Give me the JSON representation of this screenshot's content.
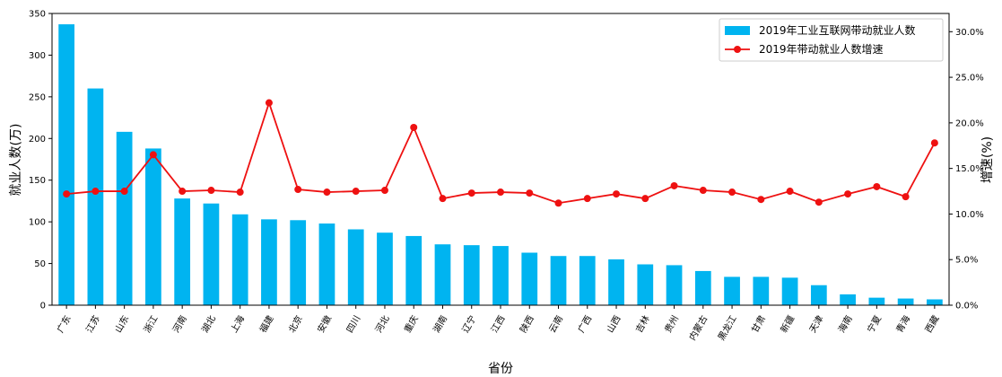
{
  "chart_data": {
    "type": "bar",
    "title": "",
    "xlabel": "省份",
    "ylabel": "就业人数(万)",
    "y2label": "增速(%)",
    "ylim": [
      0,
      350
    ],
    "y2lim": [
      0,
      32
    ],
    "yticks": [
      0,
      50,
      100,
      150,
      200,
      250,
      300,
      350
    ],
    "y2ticks": [
      "0.0%",
      "5.0%",
      "10.0%",
      "15.0%",
      "20.0%",
      "25.0%",
      "30.0%"
    ],
    "y2tick_values": [
      0,
      5,
      10,
      15,
      20,
      25,
      30
    ],
    "legend_position": "top-right",
    "categories": [
      "广东",
      "江苏",
      "山东",
      "浙江",
      "河南",
      "湖北",
      "上海",
      "福建",
      "北京",
      "安徽",
      "四川",
      "河北",
      "重庆",
      "湖南",
      "辽宁",
      "江西",
      "陕西",
      "云南",
      "广西",
      "山西",
      "吉林",
      "贵州",
      "内蒙古",
      "黑龙江",
      "甘肃",
      "新疆",
      "天津",
      "海南",
      "宁夏",
      "青海",
      "西藏"
    ],
    "series": [
      {
        "name": "2019年工业互联网带动就业人数",
        "type": "bar",
        "axis": "left",
        "color": "#00B4F0",
        "values": [
          337,
          260,
          208,
          188,
          128,
          122,
          109,
          103,
          102,
          98,
          91,
          87,
          83,
          73,
          72,
          71,
          63,
          59,
          59,
          55,
          49,
          48,
          41,
          34,
          34,
          33,
          24,
          13,
          9,
          8,
          7
        ]
      },
      {
        "name": "2019年带动就业人数增速",
        "type": "line",
        "axis": "right",
        "color": "#EE1111",
        "values": [
          12.2,
          12.5,
          12.5,
          16.5,
          12.5,
          12.6,
          12.4,
          22.2,
          12.7,
          12.4,
          12.5,
          12.6,
          19.5,
          11.7,
          12.3,
          12.4,
          12.3,
          11.2,
          11.7,
          12.2,
          11.7,
          13.1,
          12.6,
          12.4,
          11.6,
          12.5,
          11.3,
          12.2,
          13.0,
          11.9,
          17.8
        ]
      }
    ]
  }
}
